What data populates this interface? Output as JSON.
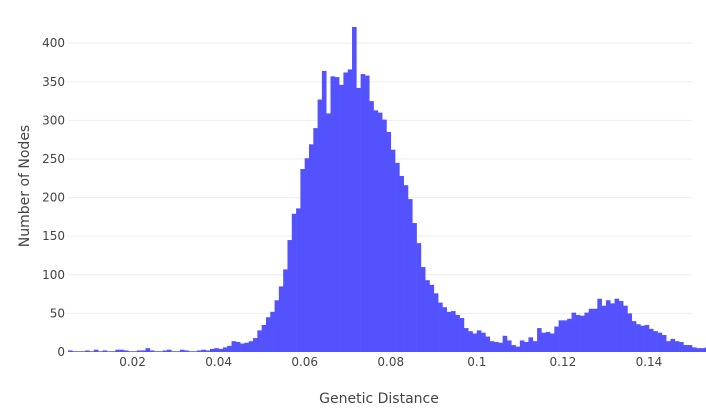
{
  "chart_data": {
    "type": "bar",
    "title": "",
    "xlabel": "Genetic Distance",
    "ylabel": "Number of Nodes",
    "xlim": [
      0.005,
      0.15
    ],
    "ylim": [
      0,
      430
    ],
    "bin_start": 0.005,
    "bin_width": 0.001,
    "x_ticks": [
      0.02,
      0.04,
      0.06,
      0.08,
      0.1,
      0.12,
      0.14
    ],
    "x_tick_labels": [
      "0.02",
      "0.04",
      "0.06",
      "0.08",
      "0.1",
      "0.12",
      "0.14"
    ],
    "y_ticks": [
      0,
      50,
      100,
      150,
      200,
      250,
      300,
      350,
      400
    ],
    "y_tick_labels": [
      "0",
      "50",
      "100",
      "150",
      "200",
      "250",
      "300",
      "350",
      "400"
    ],
    "grid": true,
    "legend": "none",
    "bar_color": "#5452FF",
    "values": [
      2,
      1,
      1,
      1,
      2,
      1,
      3,
      1,
      2,
      1,
      1,
      3,
      3,
      2,
      1,
      1,
      2,
      2,
      5,
      2,
      1,
      1,
      2,
      3,
      1,
      1,
      3,
      2,
      1,
      1,
      2,
      3,
      2,
      4,
      5,
      4,
      6,
      8,
      14,
      13,
      11,
      12,
      14,
      18,
      28,
      35,
      45,
      52,
      67,
      85,
      107,
      145,
      179,
      186,
      237,
      251,
      269,
      290,
      327,
      364,
      309,
      357,
      356,
      346,
      362,
      366,
      421,
      342,
      360,
      358,
      325,
      313,
      310,
      301,
      285,
      262,
      245,
      228,
      216,
      198,
      167,
      141,
      110,
      93,
      87,
      76,
      64,
      58,
      52,
      53,
      48,
      44,
      31,
      27,
      24,
      28,
      25,
      20,
      14,
      13,
      12,
      21,
      15,
      9,
      7,
      15,
      13,
      19,
      14,
      31,
      25,
      26,
      24,
      33,
      41,
      41,
      43,
      51,
      48,
      47,
      51,
      56,
      56,
      69,
      60,
      67,
      63,
      69,
      66,
      60,
      50,
      40,
      36,
      34,
      35,
      30,
      27,
      25,
      22,
      14,
      17,
      14,
      13,
      9,
      9,
      6,
      5,
      5,
      6,
      4,
      3,
      2,
      2,
      2,
      1,
      2
    ]
  }
}
